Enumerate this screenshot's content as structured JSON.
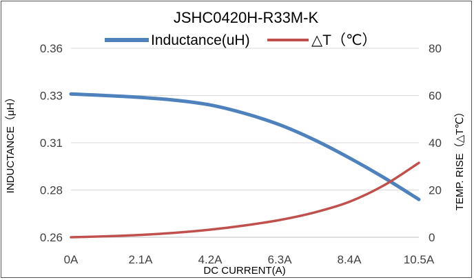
{
  "chart_data": {
    "type": "line",
    "title": "JSHC0420H-R33M-K",
    "xlabel": "DC  CURRENT(A)",
    "ylabel": "INDUCTANCE（μH）",
    "y2label": "TEMP.  RISE（△T℃）",
    "x_ticks": [
      "0A",
      "2.1A",
      "4.2A",
      "6.3A",
      "8.4A",
      "10.5A"
    ],
    "xlim": [
      0,
      10.5
    ],
    "y_ticks": [
      "0.26",
      "0.28",
      "0.31",
      "0.33",
      "0.36"
    ],
    "ylim": [
      0.26,
      0.36
    ],
    "y2_ticks": [
      "0",
      "20",
      "40",
      "60",
      "80"
    ],
    "y2lim": [
      0,
      80
    ],
    "grid": "horizontal",
    "legend_position": "top",
    "series": [
      {
        "name": "Inductance(uH)",
        "axis": "left",
        "color": "#4F81BD",
        "x": [
          0,
          1.05,
          2.1,
          3.15,
          4.2,
          5.25,
          6.3,
          7.35,
          8.4,
          9.45,
          10.5
        ],
        "values": [
          0.3358,
          0.335,
          0.334,
          0.3325,
          0.33,
          0.3255,
          0.3195,
          0.3115,
          0.302,
          0.2915,
          0.28
        ]
      },
      {
        "name": "△T（℃）",
        "axis": "right",
        "color": "#C0504D",
        "x": [
          0,
          1.05,
          2.1,
          3.15,
          4.2,
          5.25,
          6.3,
          7.35,
          8.4,
          9.45,
          10.5
        ],
        "values": [
          0,
          0.4,
          1.0,
          1.9,
          3.2,
          5.0,
          7.3,
          10.5,
          15.0,
          22.0,
          31.5
        ]
      }
    ]
  }
}
